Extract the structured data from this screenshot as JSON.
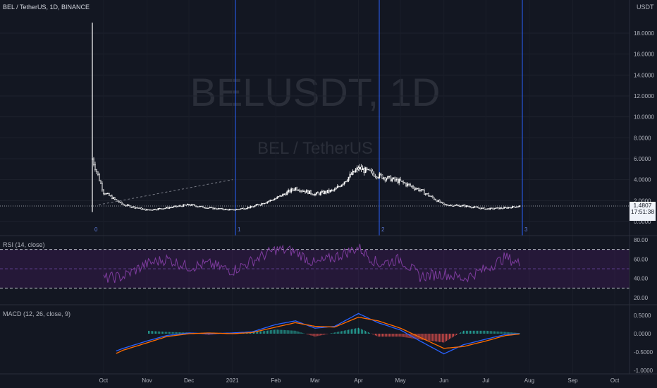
{
  "header": {
    "title": "BEL / TetherUS, 1D, BINANCE",
    "unit": "USDT"
  },
  "watermark": {
    "symbol": "BELUSDT, 1D",
    "pair": "BEL / TetherUS"
  },
  "price_axis": {
    "labels": [
      "18.0000",
      "16.0000",
      "14.0000",
      "12.0000",
      "10.0000",
      "8.0000",
      "6.0000",
      "4.0000",
      "2.0000",
      "0.0000"
    ]
  },
  "last_price": {
    "value": "1.4807",
    "countdown": "17:51:38"
  },
  "cycle_markers": [
    "0",
    "1",
    "2",
    "3"
  ],
  "rsi": {
    "label": "RSI (14, close)",
    "axis_labels": [
      "80.00",
      "60.00",
      "40.00",
      "20.00"
    ],
    "band_upper": 70,
    "band_mid": 50,
    "band_lower": 30
  },
  "macd": {
    "label": "MACD (12, 26, close, 9)",
    "axis_labels": [
      "0.5000",
      "0.0000",
      "-0.5000",
      "-1.0000"
    ]
  },
  "time_axis": {
    "labels": [
      "Oct",
      "Nov",
      "Dec",
      "2021",
      "Feb",
      "Mar",
      "Apr",
      "May",
      "Jun",
      "Jul",
      "Aug",
      "Sep",
      "Oct"
    ]
  },
  "colors": {
    "background": "#131722",
    "candle": "#ffffff",
    "rsi_line": "#7e3c9e",
    "rsi_band": "#7b1fa2",
    "macd_line": "#2962ff",
    "signal_line": "#ff6d00",
    "hist_positive": "#26a69a",
    "hist_negative": "#ef5350",
    "cycle_line": "#2962ff"
  },
  "chart_data": {
    "type": "line",
    "title": "BEL / TetherUS, 1D, BINANCE",
    "xlabel": "",
    "ylabel": "USDT",
    "ylim": [
      0,
      20
    ],
    "x": [
      "2020-09-23",
      "2020-10-01",
      "2020-10-15",
      "2020-11-01",
      "2020-11-15",
      "2020-12-01",
      "2020-12-15",
      "2021-01-01",
      "2021-01-15",
      "2021-02-01",
      "2021-02-15",
      "2021-03-01",
      "2021-03-15",
      "2021-04-01",
      "2021-04-15",
      "2021-05-01",
      "2021-05-15",
      "2021-06-01",
      "2021-06-15",
      "2021-07-01",
      "2021-07-15",
      "2021-07-25"
    ],
    "series": [
      {
        "values": [
          6.0,
          2.8,
          1.6,
          1.1,
          1.3,
          1.6,
          1.3,
          1.1,
          1.4,
          2.2,
          3.2,
          2.6,
          3.0,
          5.1,
          4.4,
          3.8,
          3.0,
          1.6,
          1.5,
          1.2,
          1.3,
          1.48
        ]
      }
    ],
    "rsi": [
      35,
      40,
      42,
      55,
      60,
      52,
      55,
      48,
      58,
      70,
      68,
      55,
      62,
      72,
      55,
      60,
      42,
      45,
      40,
      50,
      62,
      55
    ],
    "macd": [
      -0.9,
      -0.6,
      -0.4,
      -0.2,
      -0.05,
      0.02,
      0.0,
      0.02,
      0.05,
      0.25,
      0.35,
      0.15,
      0.2,
      0.55,
      0.3,
      0.1,
      -0.2,
      -0.55,
      -0.3,
      -0.15,
      -0.02,
      0.0
    ],
    "signal": [
      -0.95,
      -0.7,
      -0.45,
      -0.25,
      -0.08,
      0.0,
      0.02,
      0.0,
      0.03,
      0.18,
      0.3,
      0.2,
      0.18,
      0.45,
      0.35,
      0.15,
      -0.1,
      -0.4,
      -0.35,
      -0.2,
      -0.05,
      -0.01
    ]
  }
}
